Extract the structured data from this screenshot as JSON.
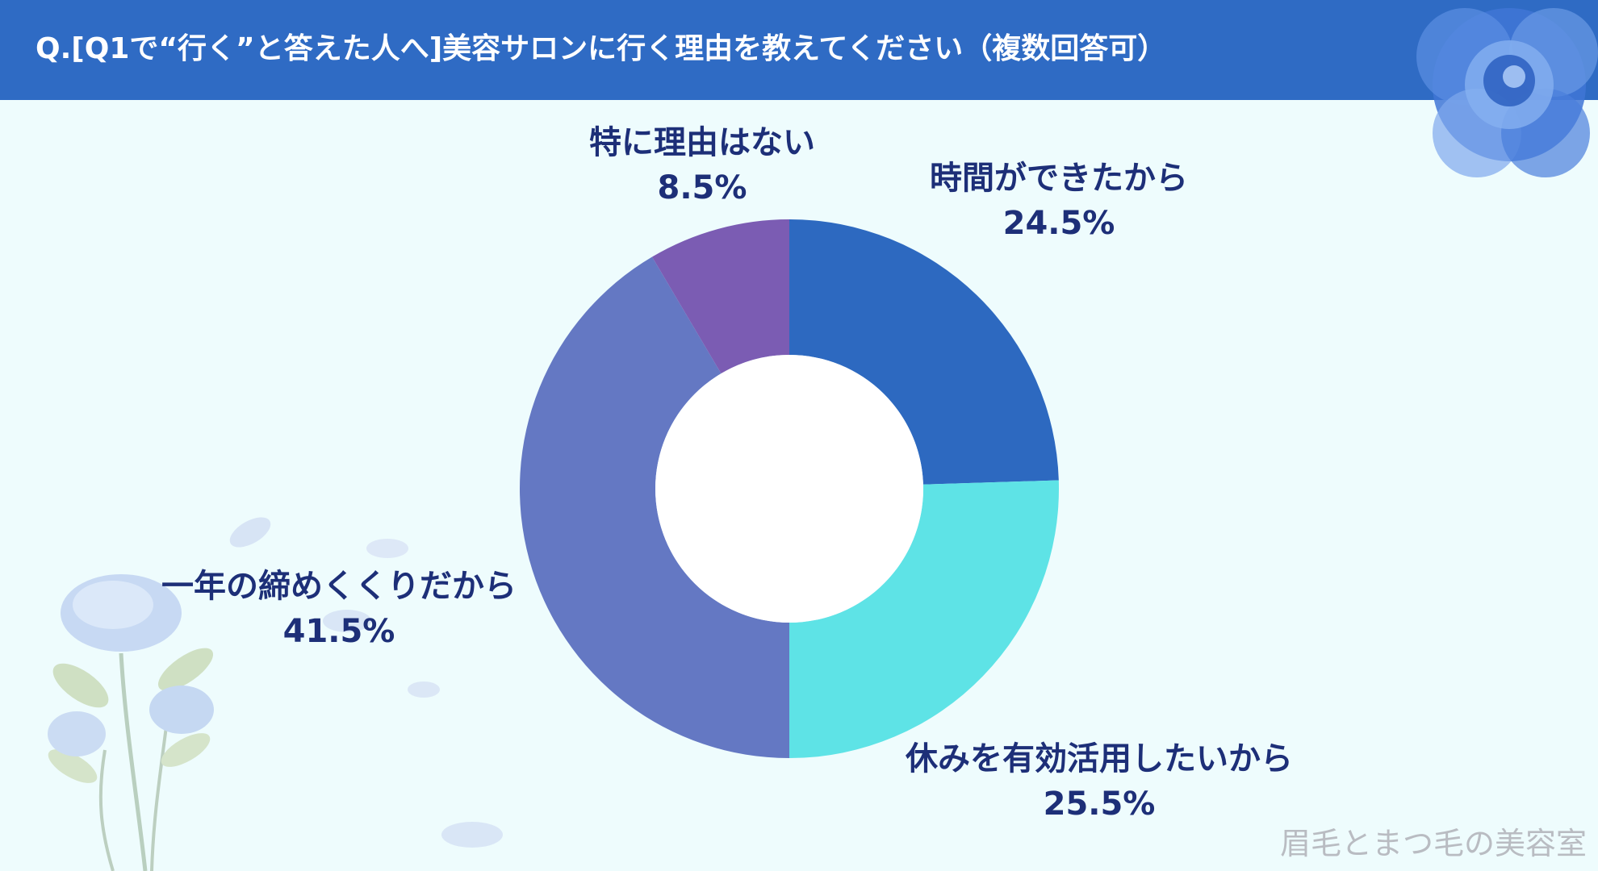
{
  "header": {
    "title": "Q.[Q1で“行く”と答えた人へ]美容サロンに行く理由を教えてください（複数回答可）",
    "background": "#2f6bc4"
  },
  "watermark": "眉毛とまつ毛の美容室",
  "colors": {
    "background": "#eefcfd",
    "label_text": "#1d2f78"
  },
  "decorations": [
    "blue-rose-icon",
    "blue-rose-bouquet-icon",
    "petal-icon"
  ],
  "chart_data": {
    "type": "pie",
    "donut": true,
    "start_angle_deg": 0,
    "direction": "clockwise",
    "slices": [
      {
        "label": "時間ができたから",
        "value": 24.5,
        "value_label": "24.5%",
        "color": "#2d69c0"
      },
      {
        "label": "休みを有効活用したいから",
        "value": 25.5,
        "value_label": "25.5%",
        "color": "#5ee3e6"
      },
      {
        "label": "一年の締めくくりだから",
        "value": 41.5,
        "value_label": "41.5%",
        "color": "#6478c3"
      },
      {
        "label": "特に理由はない",
        "value": 8.5,
        "value_label": "8.5%",
        "color": "#7b5cb3"
      }
    ],
    "legend": "none"
  }
}
